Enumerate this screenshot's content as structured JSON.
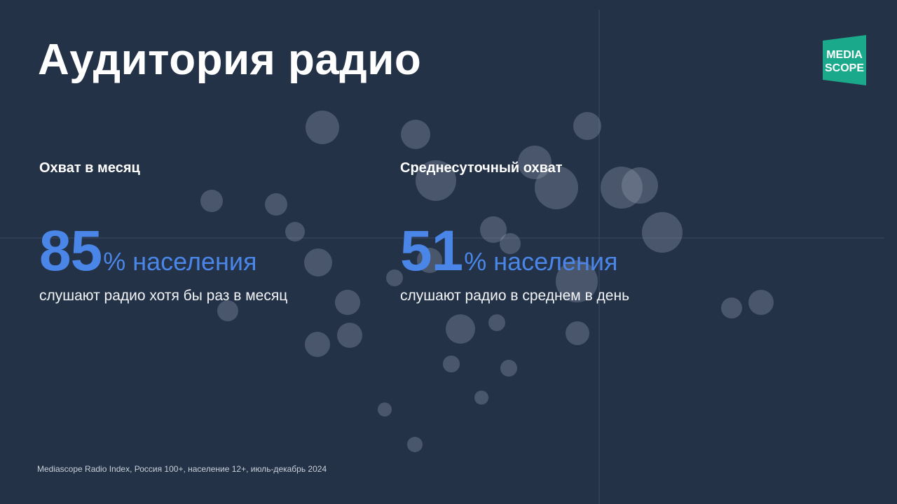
{
  "slide": {
    "title": "Аудитория радио",
    "logo": {
      "line1": "MEDIA",
      "line2": "SCOPE",
      "color": "#1aa98a",
      "icon": "mediascope-logo-icon"
    },
    "stats": [
      {
        "label": "Охват в месяц",
        "number": "85",
        "unit": "% населения",
        "description": "слушают радио хотя бы раз в месяц"
      },
      {
        "label": "Среднесуточный охват",
        "number": "51",
        "unit": "% населения",
        "description": "слушают радио в среднем в день"
      }
    ],
    "footnote": "Mediascope Radio Index, Россия 100+, население 12+, июль-декабрь 2024"
  },
  "colors": {
    "background": "#243247",
    "accent": "#4a86e8",
    "text": "#ffffff"
  }
}
